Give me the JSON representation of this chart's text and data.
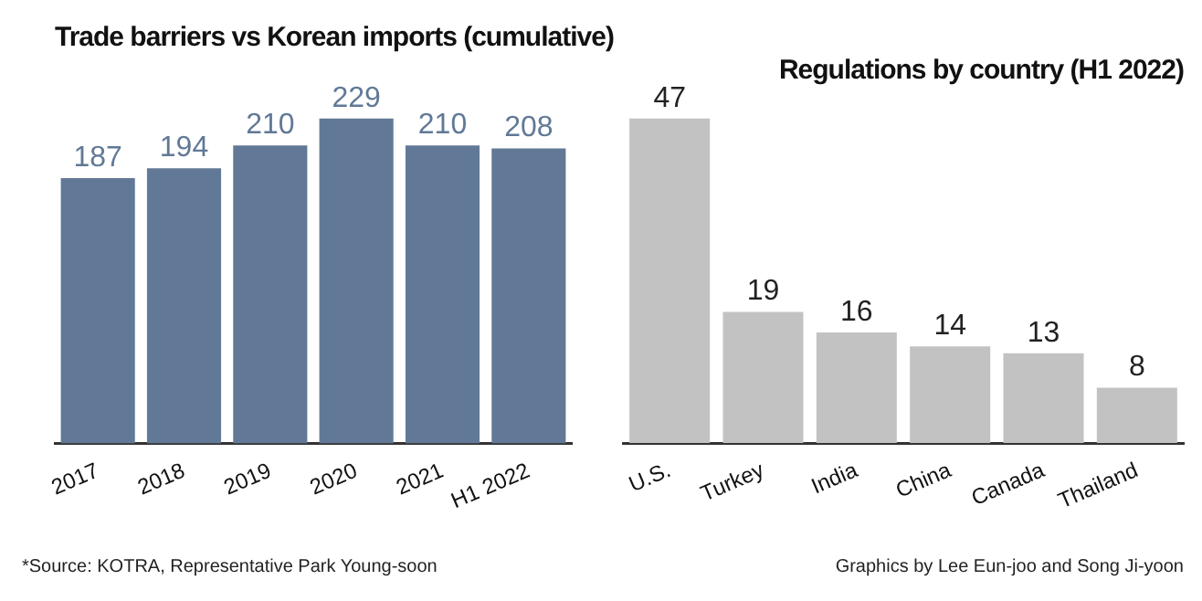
{
  "chart_data": [
    {
      "type": "bar",
      "title": "Trade barriers vs Korean imports (cumulative)",
      "categories": [
        "2017",
        "2018",
        "2019",
        "2020",
        "2021",
        "H1 2022"
      ],
      "values": [
        187,
        194,
        210,
        229,
        210,
        208
      ],
      "color": "#617996",
      "data_labels": true,
      "grid": false,
      "annotations": [
        "*Source: KOTRA, Representative Park Young-soon"
      ]
    },
    {
      "type": "bar",
      "title": "Regulations by country (H1 2022)",
      "categories": [
        "U.S.",
        "Turkey",
        "India",
        "China",
        "Canada",
        "Thailand"
      ],
      "values": [
        47,
        19,
        16,
        14,
        13,
        8
      ],
      "color": "#c2c2c2",
      "data_labels": true,
      "grid": false,
      "annotations": [
        "Graphics by Lee Eun-joo and Song Ji-yoon"
      ]
    }
  ]
}
